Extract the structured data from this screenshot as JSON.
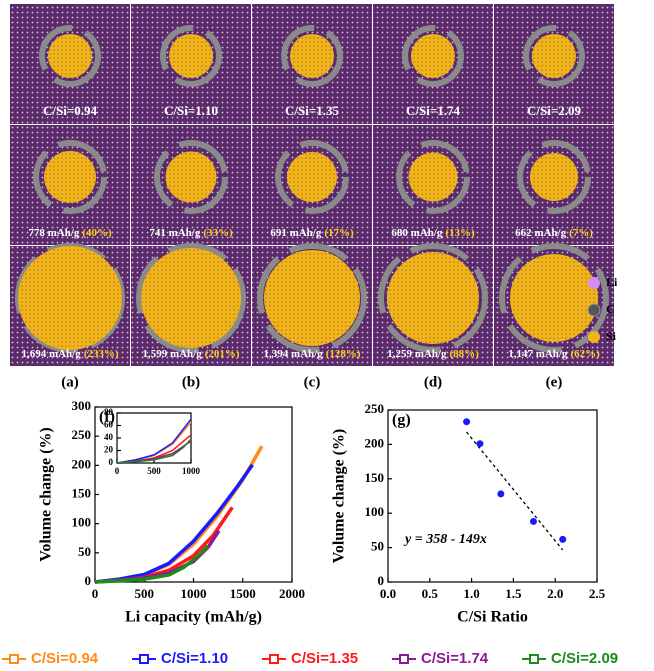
{
  "panels": [
    {
      "label": "(a)",
      "ratio": "C/Si=0.94",
      "mid": "778 mAh/g",
      "mid_pct": "(40%)",
      "end": "1,694 mAh/g",
      "end_pct": "(233%)"
    },
    {
      "label": "(b)",
      "ratio": "C/Si=1.10",
      "mid": "741 mAh/g",
      "mid_pct": "(33%)",
      "end": "1,599 mAh/g",
      "end_pct": "(201%)"
    },
    {
      "label": "(c)",
      "ratio": "C/Si=1.35",
      "mid": "691 mAh/g",
      "mid_pct": "(17%)",
      "end": "1,394 mAh/g",
      "end_pct": "(128%)"
    },
    {
      "label": "(d)",
      "ratio": "C/Si=1.74",
      "mid": "680 mAh/g",
      "mid_pct": "(13%)",
      "end": "1,259 mAh/g",
      "end_pct": "(88%)"
    },
    {
      "label": "(e)",
      "ratio": "C/Si=2.09",
      "mid": "662 mAh/g",
      "mid_pct": "(7%)",
      "end": "1,147 mAh/g",
      "end_pct": "(62%)"
    }
  ],
  "species_legend": [
    "Li",
    "C",
    "Si"
  ],
  "chart_data": [
    {
      "type": "line",
      "panel_label": "(f)",
      "xlabel": "Li capacity (mAh/g)",
      "ylabel": "Volume change (%)",
      "xlim": [
        0,
        2000
      ],
      "xticks": [
        0,
        500,
        1000,
        1500,
        2000
      ],
      "ylim": [
        0,
        300
      ],
      "yticks": [
        0,
        50,
        100,
        150,
        200,
        250,
        300
      ],
      "series": [
        {
          "name": "C/Si=0.94",
          "color": "#ff8c1a",
          "x": [
            0,
            250,
            500,
            750,
            1000,
            1250,
            1500,
            1694
          ],
          "values": [
            0,
            5,
            12,
            30,
            65,
            115,
            175,
            233
          ]
        },
        {
          "name": "C/Si=1.10",
          "color": "#1a1aff",
          "x": [
            0,
            250,
            500,
            750,
            1000,
            1250,
            1450,
            1599
          ],
          "values": [
            0,
            5,
            13,
            32,
            70,
            120,
            165,
            201
          ]
        },
        {
          "name": "C/Si=1.35",
          "color": "#ff1a1a",
          "x": [
            0,
            250,
            500,
            750,
            1000,
            1200,
            1394
          ],
          "values": [
            0,
            3,
            8,
            20,
            45,
            80,
            128
          ]
        },
        {
          "name": "C/Si=1.74",
          "color": "#8b1a9a",
          "x": [
            0,
            250,
            500,
            750,
            1000,
            1150,
            1259
          ],
          "values": [
            0,
            3,
            7,
            15,
            35,
            60,
            88
          ]
        },
        {
          "name": "C/Si=2.09",
          "color": "#1a8c1a",
          "x": [
            0,
            250,
            500,
            750,
            900,
            1050,
            1147
          ],
          "values": [
            0,
            2,
            5,
            12,
            25,
            45,
            62
          ]
        }
      ],
      "inset": {
        "xlim": [
          0,
          1000
        ],
        "xticks": [
          0,
          500,
          1000
        ],
        "ylim": [
          0,
          80
        ],
        "yticks": [
          0,
          20,
          40,
          60,
          80
        ]
      }
    },
    {
      "type": "scatter",
      "panel_label": "(g)",
      "xlabel": "C/Si Ratio",
      "ylabel": "Volume change (%)",
      "color": "#1a1aff",
      "x": [
        0.94,
        1.1,
        1.35,
        1.74,
        2.09
      ],
      "values": [
        233,
        201,
        128,
        88,
        62
      ],
      "annotation": "y = 358 - 149x",
      "fit": {
        "intercept": 358,
        "slope": -149
      },
      "xlim": [
        0,
        2.5
      ],
      "xticks": [
        {
          "value": 0,
          "label": "0.0"
        },
        0.5,
        {
          "value": 1,
          "label": "1.0"
        },
        1.5,
        {
          "value": 2,
          "label": "2.0"
        },
        2.5
      ],
      "ylim": [
        0,
        250
      ],
      "yticks": [
        0,
        50,
        100,
        150,
        200,
        250
      ]
    }
  ]
}
